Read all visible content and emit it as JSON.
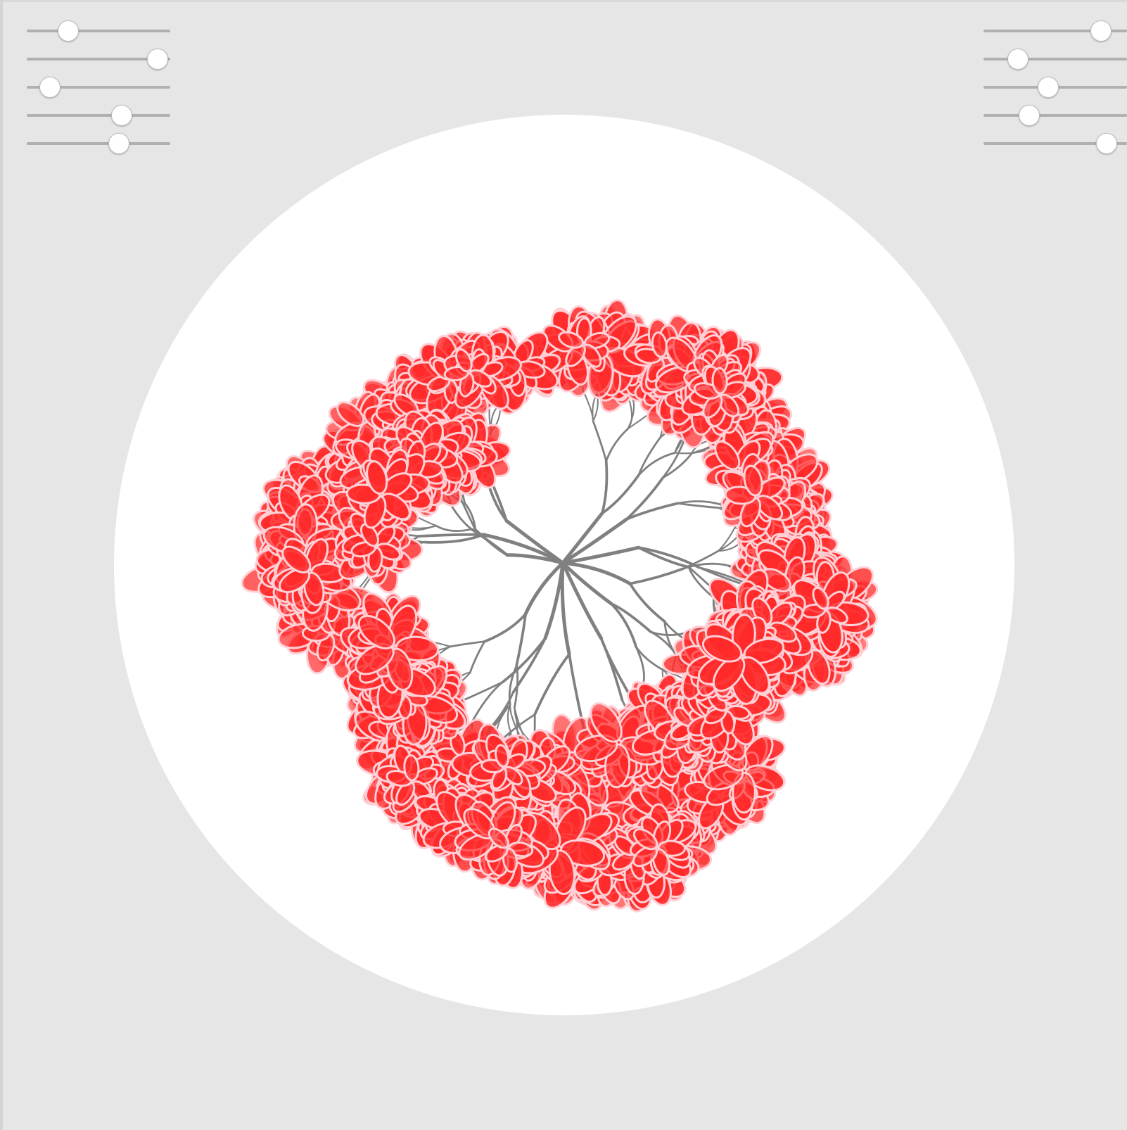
{
  "colors": {
    "background": "#e6e6e6",
    "disc": "#ffffff",
    "branch": "#808080",
    "blossom": "#ff2a2a",
    "petal_outline": "#ffd0d6",
    "slider_track": "#b0b0b0",
    "slider_thumb": "#ffffff"
  },
  "controls": {
    "left_sliders": [
      {
        "value": 0.29
      },
      {
        "value": 0.91
      },
      {
        "value": 0.16
      },
      {
        "value": 0.66
      },
      {
        "value": 0.64
      }
    ],
    "right_sliders": [
      {
        "value": 0.82
      },
      {
        "value": 0.24
      },
      {
        "value": 0.45
      },
      {
        "value": 0.32
      },
      {
        "value": 0.86
      }
    ]
  }
}
